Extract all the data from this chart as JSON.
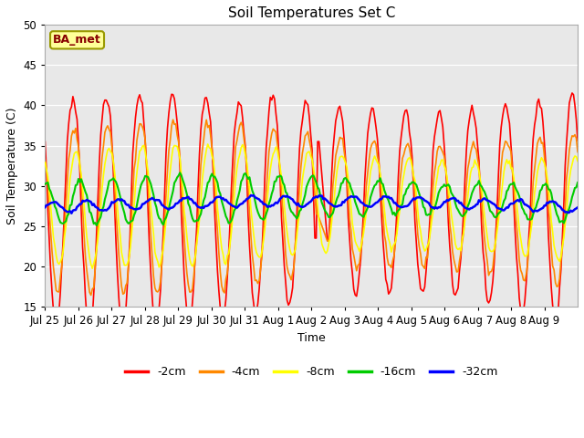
{
  "title": "Soil Temperatures Set C",
  "xlabel": "Time",
  "ylabel": "Soil Temperature (C)",
  "ylim": [
    15,
    50
  ],
  "fig_bg": "#ffffff",
  "plot_bg": "#e8e8e8",
  "annotation_text": "BA_met",
  "annotation_bg": "#ffff99",
  "annotation_border": "#999900",
  "annotation_text_color": "#880000",
  "series_colors": {
    "-2cm": "#ff0000",
    "-4cm": "#ff8800",
    "-8cm": "#ffff00",
    "-16cm": "#00cc00",
    "-32cm": "#0000ff"
  },
  "xtick_labels": [
    "Jul 25",
    "Jul 26",
    "Jul 27",
    "Jul 28",
    "Jul 29",
    "Jul 30",
    "Jul 31",
    "Aug 1",
    "Aug 2",
    "Aug 3",
    "Aug 4",
    "Aug 5",
    "Aug 6",
    "Aug 7",
    "Aug 8",
    "Aug 9"
  ],
  "ytick_labels": [
    15,
    20,
    25,
    30,
    35,
    40,
    45,
    50
  ]
}
